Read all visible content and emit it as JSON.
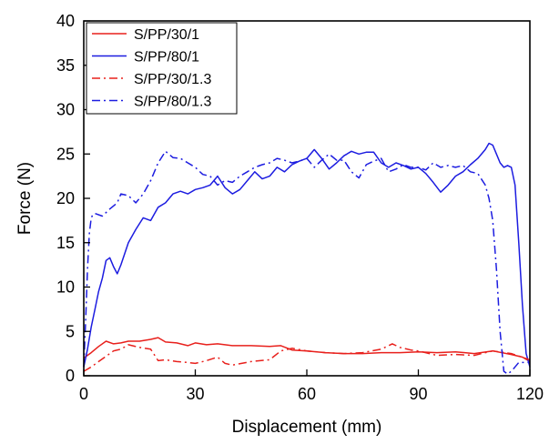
{
  "chart_data": {
    "type": "line",
    "xlabel": "Displacement (mm)",
    "ylabel": "Force (N)",
    "xlim": [
      0,
      120
    ],
    "ylim": [
      0,
      40
    ],
    "xticks": [
      0,
      30,
      60,
      90,
      120
    ],
    "yticks": [
      0,
      5,
      10,
      15,
      20,
      25,
      30,
      35,
      40
    ],
    "grid": false,
    "legend_position": "top-left",
    "series": [
      {
        "name": "S/PP/30/1",
        "color": "#e8201c",
        "dash": "solid",
        "x": [
          0,
          2,
          4,
          6,
          8,
          10,
          12,
          15,
          18,
          20,
          22,
          25,
          28,
          30,
          33,
          36,
          40,
          45,
          50,
          53,
          56,
          60,
          65,
          70,
          75,
          80,
          85,
          90,
          95,
          100,
          105,
          110,
          115,
          118,
          120
        ],
        "y": [
          2.0,
          2.6,
          3.3,
          3.9,
          3.6,
          3.7,
          3.9,
          3.9,
          4.1,
          4.3,
          3.8,
          3.7,
          3.4,
          3.7,
          3.5,
          3.6,
          3.4,
          3.4,
          3.3,
          3.4,
          2.9,
          2.8,
          2.6,
          2.5,
          2.5,
          2.6,
          2.6,
          2.7,
          2.6,
          2.7,
          2.5,
          2.8,
          2.4,
          2.1,
          1.6
        ]
      },
      {
        "name": "S/PP/80/1",
        "color": "#1c1ce0",
        "dash": "solid",
        "x": [
          0,
          1,
          2,
          3,
          4,
          5,
          6,
          7,
          8,
          9,
          10,
          12,
          14,
          16,
          18,
          20,
          22,
          24,
          26,
          28,
          30,
          32,
          34,
          36,
          38,
          40,
          42,
          44,
          46,
          48,
          50,
          52,
          54,
          56,
          58,
          60,
          62,
          64,
          66,
          68,
          70,
          72,
          74,
          76,
          78,
          80,
          82,
          84,
          86,
          88,
          90,
          92,
          94,
          96,
          98,
          100,
          102,
          104,
          106,
          108,
          109,
          110,
          111,
          112,
          113,
          114,
          115,
          116,
          117,
          118,
          119,
          120
        ],
        "y": [
          1.0,
          3.0,
          5.5,
          7.5,
          9.5,
          11.0,
          13.0,
          13.3,
          12.3,
          11.5,
          12.5,
          15.0,
          16.5,
          17.8,
          17.5,
          19.0,
          19.5,
          20.5,
          20.8,
          20.5,
          21.0,
          21.2,
          21.5,
          22.5,
          21.2,
          20.5,
          21.0,
          22.0,
          23.0,
          22.2,
          22.5,
          23.5,
          23.0,
          23.8,
          24.2,
          24.5,
          25.5,
          24.5,
          23.3,
          24.0,
          24.8,
          25.3,
          25.0,
          25.2,
          25.2,
          24.0,
          23.5,
          24.0,
          23.7,
          23.3,
          23.5,
          22.8,
          21.8,
          20.7,
          21.5,
          22.5,
          23.0,
          23.8,
          24.5,
          25.5,
          26.2,
          26.0,
          25.0,
          24.0,
          23.5,
          23.7,
          23.5,
          21.5,
          15.0,
          8.0,
          2.5,
          1.0
        ]
      },
      {
        "name": "S/PP/30/1.3",
        "color": "#e8201c",
        "dash": "dashdot",
        "x": [
          0,
          2,
          4,
          6,
          8,
          10,
          12,
          15,
          18,
          20,
          22,
          25,
          28,
          30,
          33,
          36,
          38,
          40,
          45,
          50,
          53,
          56,
          60,
          65,
          70,
          75,
          80,
          83,
          85,
          88,
          90,
          95,
          100,
          105,
          110,
          115,
          120
        ],
        "y": [
          0.5,
          1.0,
          1.6,
          2.2,
          2.8,
          3.0,
          3.5,
          3.2,
          3.0,
          1.7,
          1.8,
          1.6,
          1.5,
          1.4,
          1.7,
          2.1,
          1.4,
          1.2,
          1.6,
          1.8,
          2.8,
          3.1,
          2.8,
          2.6,
          2.5,
          2.6,
          3.0,
          3.6,
          3.2,
          2.9,
          2.8,
          2.3,
          2.4,
          2.3,
          2.8,
          2.5,
          1.8
        ]
      },
      {
        "name": "S/PP/80/1.3",
        "color": "#1c1ce0",
        "dash": "dashdot",
        "x": [
          0,
          0.5,
          1,
          1.5,
          2,
          2.5,
          3,
          5,
          7,
          9,
          10,
          12,
          14,
          16,
          18,
          20,
          22,
          24,
          26,
          28,
          30,
          32,
          34,
          36,
          38,
          40,
          42,
          44,
          46,
          48,
          50,
          52,
          54,
          56,
          58,
          60,
          62,
          64,
          66,
          68,
          70,
          72,
          74,
          76,
          78,
          80,
          82,
          84,
          86,
          88,
          90,
          92,
          94,
          96,
          98,
          100,
          102,
          104,
          106,
          108,
          109,
          110,
          111,
          112,
          113,
          114,
          115,
          116,
          117,
          118,
          119,
          120
        ],
        "y": [
          1.0,
          6.0,
          12.0,
          16.0,
          17.8,
          18.2,
          18.3,
          18.0,
          18.8,
          19.5,
          20.5,
          20.3,
          19.5,
          20.5,
          22.0,
          24.0,
          25.3,
          24.6,
          24.5,
          24.0,
          23.5,
          22.7,
          22.5,
          21.5,
          22.0,
          21.8,
          22.5,
          23.0,
          23.5,
          23.8,
          24.0,
          24.5,
          24.3,
          24.0,
          24.2,
          24.5,
          23.5,
          24.3,
          25.0,
          24.3,
          24.3,
          23.0,
          22.3,
          23.8,
          24.2,
          24.5,
          23.0,
          23.3,
          23.8,
          23.5,
          23.5,
          23.2,
          24.0,
          23.5,
          23.7,
          23.5,
          23.7,
          23.0,
          22.8,
          21.5,
          20.0,
          17.5,
          12.0,
          5.0,
          0.5,
          0.2,
          0.5,
          1.0,
          1.5,
          1.5,
          1.5,
          1.5
        ]
      }
    ]
  }
}
